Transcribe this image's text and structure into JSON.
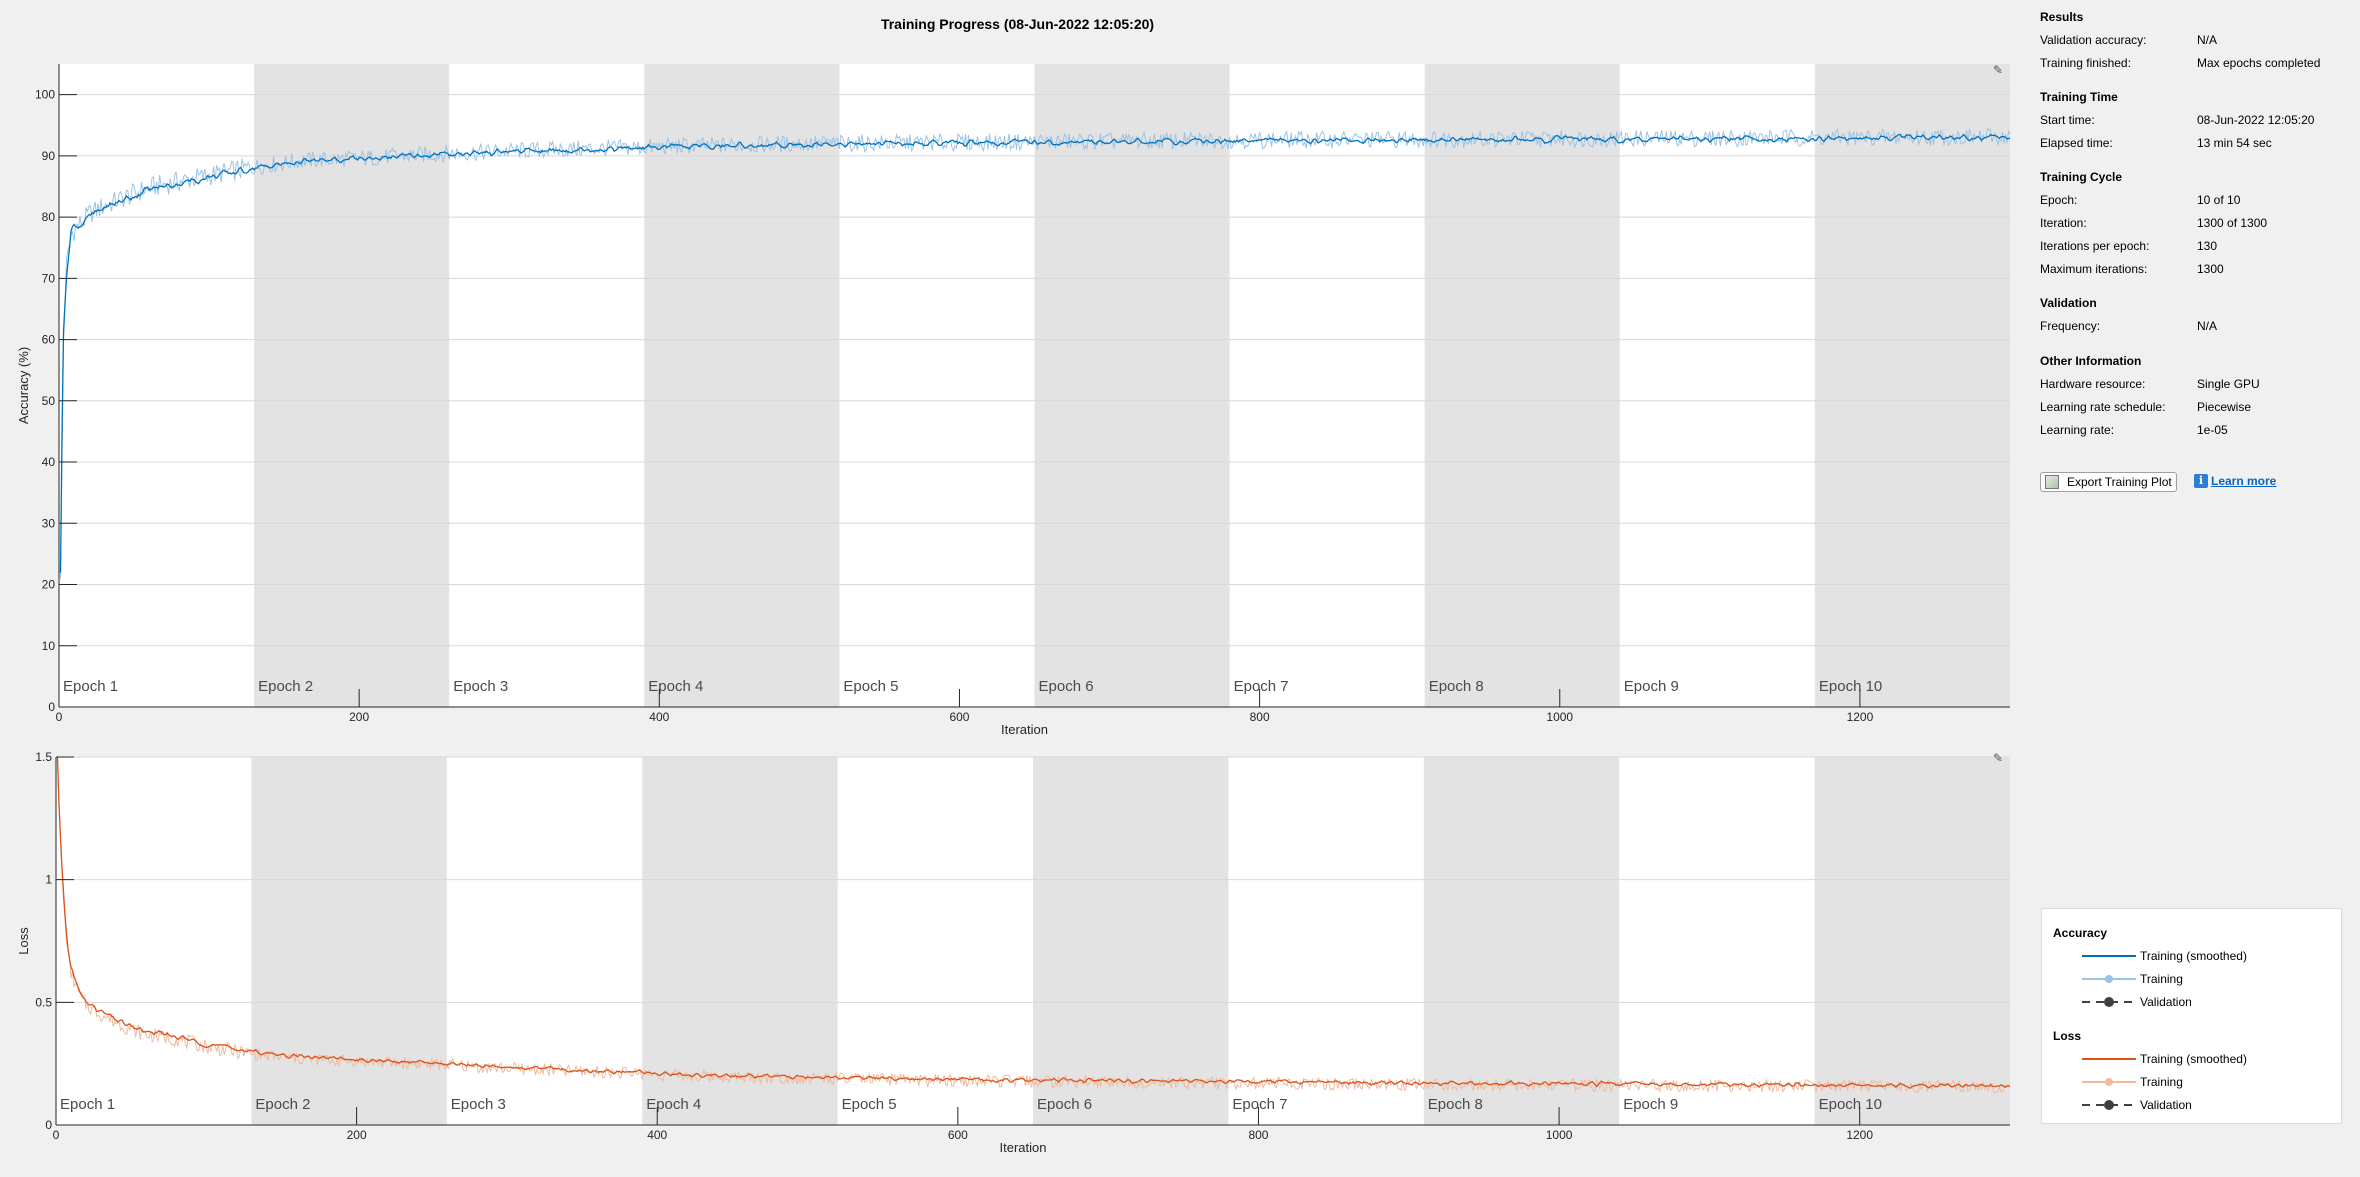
{
  "window_title": "Training Progress (08-Jun-2022 12:05:20)",
  "colors": {
    "training_smoothed_accuracy": "#0072bd",
    "training_accuracy": "#9cc3e6",
    "training_smoothed_loss": "#d95319",
    "training_loss": "#f2b9a0",
    "validation": "#404040",
    "epoch_band_shaded": "#e3e3e3",
    "plot_background": "#ffffff"
  },
  "chart_data": [
    {
      "type": "line",
      "ylabel": "Accuracy (%)",
      "xlabel": "Iteration",
      "xlim": [
        0,
        1300
      ],
      "ylim": [
        0,
        105
      ],
      "xticks": [
        0,
        200,
        400,
        600,
        800,
        1000,
        1200
      ],
      "yticks": [
        0,
        10,
        20,
        30,
        40,
        50,
        60,
        70,
        80,
        90,
        100
      ],
      "grid": true,
      "epochs": [
        "Epoch 1",
        "Epoch 2",
        "Epoch 3",
        "Epoch 4",
        "Epoch 5",
        "Epoch 6",
        "Epoch 7",
        "Epoch 8",
        "Epoch 9",
        "Epoch 10"
      ],
      "iterations_per_epoch": 130,
      "series": [
        {
          "name": "Training (smoothed)",
          "x": [
            1,
            2,
            3,
            5,
            8,
            10,
            15,
            20,
            30,
            40,
            50,
            60,
            80,
            100,
            130,
            160,
            200,
            260,
            300,
            390,
            420,
            500,
            600,
            700,
            800,
            900,
            1000,
            1100,
            1200,
            1300
          ],
          "y": [
            22,
            45,
            62,
            70,
            78,
            78.5,
            78.8,
            80,
            81.5,
            82.5,
            83.5,
            84.5,
            85.5,
            86.5,
            88,
            89,
            89.5,
            90.3,
            90.7,
            91.3,
            91.5,
            91.9,
            92.1,
            92.3,
            92.5,
            92.6,
            92.7,
            92.8,
            92.9,
            93
          ]
        },
        {
          "name": "Training",
          "x": [
            1,
            2,
            3,
            5,
            8,
            10,
            15,
            20,
            30,
            40,
            50,
            60,
            80,
            100,
            130,
            160,
            200,
            260,
            300,
            390,
            420,
            500,
            600,
            700,
            800,
            900,
            1000,
            1100,
            1200,
            1300
          ],
          "y": [
            20,
            40,
            60,
            72,
            77,
            78,
            79,
            80.5,
            81.8,
            82.8,
            83.8,
            84.8,
            85.8,
            86.8,
            88.2,
            89.2,
            89.6,
            90.4,
            90.8,
            91.4,
            91.6,
            92,
            92.2,
            92.4,
            92.6,
            92.7,
            92.8,
            92.9,
            93,
            93.1
          ]
        }
      ]
    },
    {
      "type": "line",
      "ylabel": "Loss",
      "xlabel": "Iteration",
      "xlim": [
        0,
        1300
      ],
      "ylim": [
        0,
        1.5
      ],
      "xticks": [
        0,
        200,
        400,
        600,
        800,
        1000,
        1200
      ],
      "yticks": [
        0,
        0.5,
        1,
        1.5
      ],
      "ytick_labels": [
        "0",
        "0.5",
        "1",
        "1.5"
      ],
      "grid": true,
      "epochs": [
        "Epoch 1",
        "Epoch 2",
        "Epoch 3",
        "Epoch 4",
        "Epoch 5",
        "Epoch 6",
        "Epoch 7",
        "Epoch 8",
        "Epoch 9",
        "Epoch 10"
      ],
      "iterations_per_epoch": 130,
      "series": [
        {
          "name": "Training (smoothed)",
          "x": [
            1,
            2,
            4,
            6,
            8,
            10,
            15,
            20,
            30,
            40,
            50,
            60,
            80,
            100,
            130,
            160,
            200,
            260,
            300,
            390,
            420,
            500,
            600,
            700,
            800,
            900,
            1000,
            1100,
            1200,
            1300
          ],
          "y": [
            1.5,
            1.3,
            1.05,
            0.85,
            0.72,
            0.64,
            0.55,
            0.5,
            0.46,
            0.43,
            0.4,
            0.38,
            0.36,
            0.33,
            0.3,
            0.28,
            0.265,
            0.25,
            0.235,
            0.215,
            0.205,
            0.195,
            0.185,
            0.18,
            0.175,
            0.17,
            0.168,
            0.165,
            0.163,
            0.16
          ]
        },
        {
          "name": "Training",
          "x": [
            1,
            2,
            4,
            6,
            8,
            10,
            15,
            20,
            30,
            40,
            50,
            60,
            80,
            100,
            130,
            160,
            200,
            260,
            300,
            390,
            420,
            500,
            600,
            700,
            800,
            900,
            1000,
            1100,
            1200,
            1300
          ],
          "y": [
            1.5,
            1.28,
            1.02,
            0.83,
            0.7,
            0.62,
            0.54,
            0.49,
            0.45,
            0.42,
            0.39,
            0.37,
            0.35,
            0.32,
            0.29,
            0.27,
            0.26,
            0.245,
            0.23,
            0.21,
            0.2,
            0.19,
            0.18,
            0.175,
            0.17,
            0.165,
            0.163,
            0.16,
            0.158,
            0.155
          ]
        }
      ]
    }
  ],
  "info": {
    "results": {
      "heading": "Results",
      "rows": [
        {
          "label": "Validation accuracy:",
          "value": "N/A"
        },
        {
          "label": "Training finished:",
          "value": "Max epochs completed"
        }
      ]
    },
    "training_time": {
      "heading": "Training Time",
      "rows": [
        {
          "label": "Start time:",
          "value": "08-Jun-2022 12:05:20"
        },
        {
          "label": "Elapsed time:",
          "value": "13 min 54 sec"
        }
      ]
    },
    "training_cycle": {
      "heading": "Training Cycle",
      "rows": [
        {
          "label": "Epoch:",
          "value": "10 of 10"
        },
        {
          "label": "Iteration:",
          "value": "1300 of 1300"
        },
        {
          "label": "Iterations per epoch:",
          "value": "130"
        },
        {
          "label": "Maximum iterations:",
          "value": "1300"
        }
      ]
    },
    "validation": {
      "heading": "Validation",
      "rows": [
        {
          "label": "Frequency:",
          "value": "N/A"
        }
      ]
    },
    "other": {
      "heading": "Other Information",
      "rows": [
        {
          "label": "Hardware resource:",
          "value": "Single GPU"
        },
        {
          "label": "Learning rate schedule:",
          "value": "Piecewise"
        },
        {
          "label": "Learning rate:",
          "value": "1e-05"
        }
      ]
    }
  },
  "buttons": {
    "export": "Export Training Plot",
    "learn_more": "Learn more"
  },
  "legend": {
    "accuracy": {
      "heading": "Accuracy",
      "items": [
        "Training (smoothed)",
        "Training",
        "Validation"
      ]
    },
    "loss": {
      "heading": "Loss",
      "items": [
        "Training (smoothed)",
        "Training",
        "Validation"
      ]
    }
  }
}
